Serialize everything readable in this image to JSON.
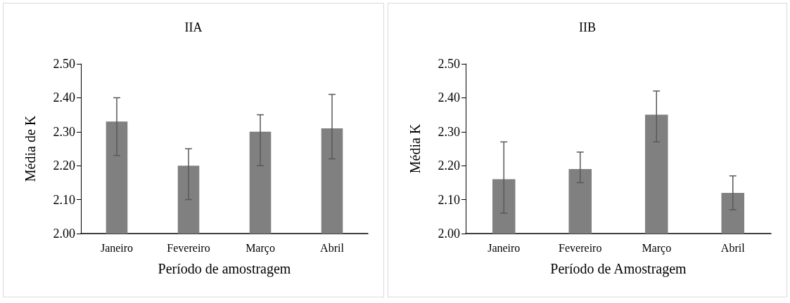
{
  "chart_data": [
    {
      "type": "bar",
      "title": "IIA",
      "xlabel": "Período de amostragem",
      "ylabel": "Média de K",
      "categories": [
        "Janeiro",
        "Fevereiro",
        "Março",
        "Abril"
      ],
      "values": [
        2.33,
        2.2,
        2.3,
        2.31
      ],
      "color": "#808080",
      "errors": [
        [
          2.23,
          2.4
        ],
        [
          2.1,
          2.25
        ],
        [
          2.2,
          2.35
        ],
        [
          2.22,
          2.41
        ]
      ],
      "ylim": [
        2.0,
        2.5
      ],
      "yticks": [
        {
          "value": 2.0,
          "label": "2.00"
        },
        {
          "value": 2.1,
          "label": "2.10"
        },
        {
          "value": 2.2,
          "label": "2.20"
        },
        {
          "value": 2.3,
          "label": "2.30"
        },
        {
          "value": 2.4,
          "label": "2.40"
        },
        {
          "value": 2.5,
          "label": "2.50"
        }
      ],
      "grid": false
    },
    {
      "type": "bar",
      "title": "IIB",
      "xlabel": "Período de Amostragem",
      "ylabel": "Média K",
      "categories": [
        "Janeiro",
        "Fevereiro",
        "Março",
        "Abril"
      ],
      "values": [
        2.16,
        2.19,
        2.35,
        2.12
      ],
      "color": "#808080",
      "errors": [
        [
          2.06,
          2.27
        ],
        [
          2.15,
          2.24
        ],
        [
          2.27,
          2.42
        ],
        [
          2.07,
          2.17
        ]
      ],
      "ylim": [
        2.0,
        2.5
      ],
      "yticks": [
        {
          "value": 2.0,
          "label": "2.00"
        },
        {
          "value": 2.1,
          "label": "2.10"
        },
        {
          "value": 2.2,
          "label": "2.20"
        },
        {
          "value": 2.3,
          "label": "2.30"
        },
        {
          "value": 2.4,
          "label": "2.40"
        },
        {
          "value": 2.5,
          "label": "2.50"
        }
      ],
      "grid": false
    }
  ]
}
